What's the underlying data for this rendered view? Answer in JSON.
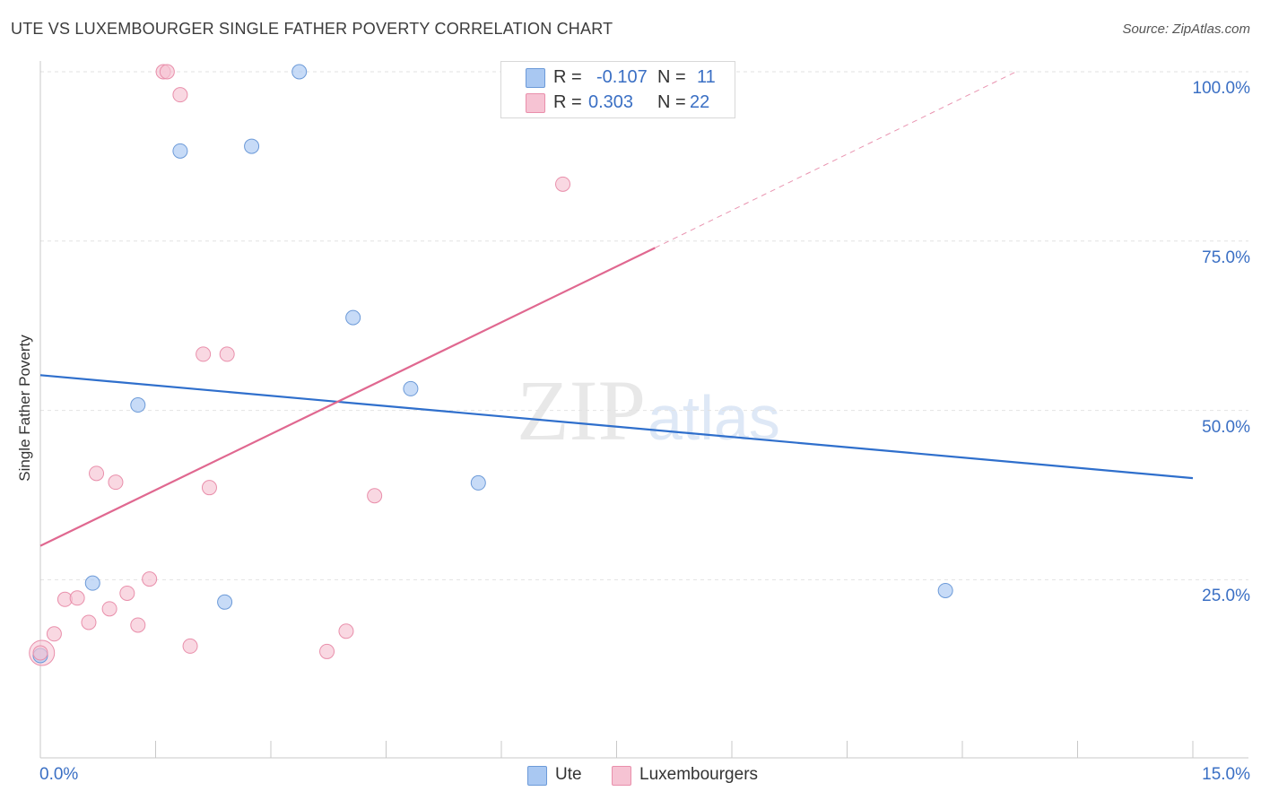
{
  "header": {
    "title": "UTE VS LUXEMBOURGER SINGLE FATHER POVERTY CORRELATION CHART",
    "source": "Source: ZipAtlas.com"
  },
  "watermark": {
    "zip": "ZIP",
    "atlas": "atlas"
  },
  "legend": {
    "rows": [
      {
        "r_label": "R =",
        "r_value": "-0.107",
        "n_label": "N =",
        "n_value": "11",
        "color": "#a9c8f2"
      },
      {
        "r_label": "R =",
        "r_value": "0.303",
        "n_label": "N =",
        "n_value": "22",
        "color": "#f6b8cb"
      }
    ]
  },
  "bottom_legend": {
    "series1": "Ute",
    "series2": "Luxembourgers"
  },
  "chart_data": {
    "type": "scatter",
    "title": "UTE VS LUXEMBOURGER SINGLE FATHER POVERTY CORRELATION CHART",
    "ylabel": "Single Father Poverty",
    "xlabel": "",
    "xlim": [
      0,
      15
    ],
    "ylim": [
      0,
      102
    ],
    "x_tick_labels": [
      "0.0%",
      "15.0%"
    ],
    "y_tick_labels": [
      "25.0%",
      "50.0%",
      "75.0%",
      "100.0%"
    ],
    "y_ticks": [
      25,
      50,
      75,
      100
    ],
    "grid": true,
    "series": [
      {
        "name": "Ute",
        "color": "#a9c8f2",
        "stroke": "#6c9ad8",
        "points": [
          [
            0.0,
            13.8
          ],
          [
            0.68,
            24.5
          ],
          [
            1.27,
            50.8
          ],
          [
            1.82,
            88.3
          ],
          [
            2.4,
            21.7
          ],
          [
            2.75,
            89.0
          ],
          [
            3.37,
            100.0
          ],
          [
            4.07,
            63.7
          ],
          [
            4.82,
            53.2
          ],
          [
            5.7,
            39.3
          ],
          [
            11.78,
            23.4
          ]
        ],
        "trend": {
          "x": [
            0,
            15
          ],
          "y": [
            55.2,
            40.0
          ],
          "color": "#2f6fcc"
        }
      },
      {
        "name": "Luxembourgers",
        "color": "#f6c3d3",
        "stroke": "#e98fab",
        "points": [
          [
            0.0,
            14.2
          ],
          [
            0.18,
            17.0
          ],
          [
            0.32,
            22.1
          ],
          [
            0.48,
            22.3
          ],
          [
            0.63,
            18.7
          ],
          [
            0.73,
            40.7
          ],
          [
            0.9,
            20.7
          ],
          [
            0.98,
            39.4
          ],
          [
            1.13,
            23.0
          ],
          [
            1.27,
            18.3
          ],
          [
            1.42,
            25.1
          ],
          [
            1.6,
            100.0
          ],
          [
            1.65,
            100.0
          ],
          [
            1.82,
            96.6
          ],
          [
            1.95,
            15.2
          ],
          [
            2.12,
            58.3
          ],
          [
            2.2,
            38.6
          ],
          [
            2.43,
            58.3
          ],
          [
            3.73,
            14.4
          ],
          [
            3.98,
            17.4
          ],
          [
            4.35,
            37.4
          ],
          [
            6.8,
            83.4
          ]
        ],
        "trend": {
          "x": [
            0,
            8.0
          ],
          "y": [
            30.0,
            74.0
          ],
          "dash_to": [
            12.7,
            100.0
          ],
          "color": "#e06890"
        }
      }
    ]
  }
}
